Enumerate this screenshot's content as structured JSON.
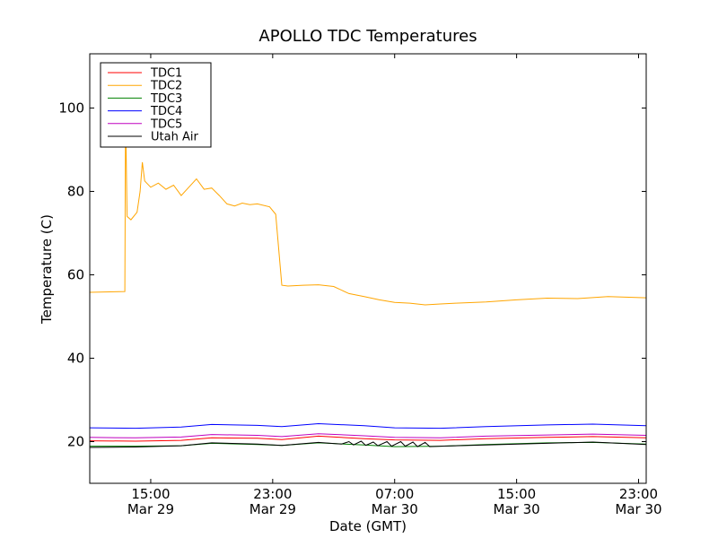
{
  "chart_data": {
    "type": "line",
    "title": "APOLLO TDC Temperatures",
    "xlabel": "Date (GMT)",
    "ylabel": "Temperature (C)",
    "x_unit": "hours since Mar 29 11:00 GMT",
    "xlim": [
      0,
      36.5
    ],
    "ylim": [
      10,
      113
    ],
    "yticks": [
      20,
      40,
      60,
      80,
      100
    ],
    "xticks": [
      {
        "x": 4,
        "line1": "15:00",
        "line2": "Mar 29"
      },
      {
        "x": 12,
        "line1": "23:00",
        "line2": "Mar 29"
      },
      {
        "x": 20,
        "line1": "07:00",
        "line2": "Mar 30"
      },
      {
        "x": 28,
        "line1": "15:00",
        "line2": "Mar 30"
      },
      {
        "x": 36,
        "line1": "23:00",
        "line2": "Mar 30"
      }
    ],
    "grid": false,
    "legend_position": "top-left",
    "series": [
      {
        "name": "TDC1",
        "color": "#ff0000",
        "points": [
          [
            0,
            20.2
          ],
          [
            3,
            20.1
          ],
          [
            6,
            20.3
          ],
          [
            8,
            20.9
          ],
          [
            11,
            20.8
          ],
          [
            12.6,
            20.5
          ],
          [
            15,
            21.3
          ],
          [
            18,
            20.7
          ],
          [
            20,
            20.4
          ],
          [
            23,
            20.3
          ],
          [
            26,
            20.7
          ],
          [
            30,
            21.0
          ],
          [
            33,
            21.2
          ],
          [
            36.5,
            20.9
          ]
        ]
      },
      {
        "name": "TDC2",
        "color": "#ffa500",
        "points": [
          [
            0,
            55.8
          ],
          [
            2.3,
            56.0
          ],
          [
            2.35,
            99
          ],
          [
            2.45,
            74
          ],
          [
            2.7,
            73.2
          ],
          [
            3.1,
            75
          ],
          [
            3.3,
            80
          ],
          [
            3.45,
            87
          ],
          [
            3.6,
            82.5
          ],
          [
            4,
            81
          ],
          [
            4.5,
            82
          ],
          [
            5,
            80.5
          ],
          [
            5.5,
            81.5
          ],
          [
            6,
            79
          ],
          [
            6.5,
            81
          ],
          [
            7,
            83
          ],
          [
            7.5,
            80.5
          ],
          [
            8,
            80.8
          ],
          [
            8.5,
            79
          ],
          [
            9,
            77
          ],
          [
            9.5,
            76.5
          ],
          [
            10,
            77.2
          ],
          [
            10.5,
            76.8
          ],
          [
            11,
            77
          ],
          [
            11.8,
            76.3
          ],
          [
            12.2,
            74.5
          ],
          [
            12.6,
            57.5
          ],
          [
            13,
            57.3
          ],
          [
            14,
            57.5
          ],
          [
            15,
            57.6
          ],
          [
            16,
            57.2
          ],
          [
            17,
            55.5
          ],
          [
            18,
            54.8
          ],
          [
            19,
            54
          ],
          [
            20,
            53.4
          ],
          [
            21,
            53.2
          ],
          [
            22,
            52.8
          ],
          [
            23,
            53
          ],
          [
            24,
            53.2
          ],
          [
            26,
            53.5
          ],
          [
            28,
            54
          ],
          [
            30,
            54.4
          ],
          [
            32,
            54.3
          ],
          [
            34,
            54.8
          ],
          [
            36.5,
            54.5
          ]
        ]
      },
      {
        "name": "TDC3",
        "color": "#008000",
        "points": [
          [
            0,
            18.9
          ],
          [
            3,
            18.9
          ],
          [
            6,
            19.0
          ],
          [
            8,
            19.6
          ],
          [
            11,
            19.3
          ],
          [
            12.6,
            19.1
          ],
          [
            15,
            19.7
          ],
          [
            18,
            19.2
          ],
          [
            20,
            18.8
          ],
          [
            23,
            18.9
          ],
          [
            26,
            19.3
          ],
          [
            30,
            19.7
          ],
          [
            33,
            19.8
          ],
          [
            36.5,
            19.4
          ]
        ]
      },
      {
        "name": "TDC4",
        "color": "#0000ff",
        "points": [
          [
            0,
            23.3
          ],
          [
            3,
            23.2
          ],
          [
            6,
            23.5
          ],
          [
            8,
            24.1
          ],
          [
            11,
            23.9
          ],
          [
            12.6,
            23.6
          ],
          [
            15,
            24.3
          ],
          [
            18,
            23.8
          ],
          [
            20,
            23.3
          ],
          [
            23,
            23.2
          ],
          [
            26,
            23.6
          ],
          [
            30,
            24.0
          ],
          [
            33,
            24.2
          ],
          [
            36.5,
            23.8
          ]
        ]
      },
      {
        "name": "TDC5",
        "color": "#bf00bf",
        "points": [
          [
            0,
            21.0
          ],
          [
            3,
            20.9
          ],
          [
            6,
            21.1
          ],
          [
            8,
            21.7
          ],
          [
            11,
            21.5
          ],
          [
            12.6,
            21.2
          ],
          [
            15,
            21.9
          ],
          [
            18,
            21.4
          ],
          [
            20,
            21.0
          ],
          [
            23,
            20.9
          ],
          [
            26,
            21.3
          ],
          [
            30,
            21.6
          ],
          [
            33,
            21.8
          ],
          [
            36.5,
            21.5
          ]
        ]
      },
      {
        "name": "Utah Air",
        "color": "#000000",
        "points": [
          [
            0,
            18.6
          ],
          [
            3,
            18.7
          ],
          [
            6,
            19.0
          ],
          [
            8,
            19.7
          ],
          [
            11,
            19.4
          ],
          [
            12.6,
            19.1
          ],
          [
            15,
            19.8
          ],
          [
            16.5,
            19.4
          ],
          [
            17,
            20.0
          ],
          [
            17.3,
            19.2
          ],
          [
            17.8,
            20.1
          ],
          [
            18.1,
            19.1
          ],
          [
            18.6,
            19.9
          ],
          [
            18.9,
            19.0
          ],
          [
            19.5,
            20.0
          ],
          [
            19.8,
            18.9
          ],
          [
            20.4,
            20.0
          ],
          [
            20.7,
            18.9
          ],
          [
            21.2,
            19.9
          ],
          [
            21.5,
            18.8
          ],
          [
            22,
            19.8
          ],
          [
            22.3,
            18.8
          ],
          [
            23,
            18.9
          ],
          [
            26,
            19.2
          ],
          [
            30,
            19.6
          ],
          [
            33,
            19.9
          ],
          [
            36.5,
            19.3
          ]
        ]
      }
    ]
  }
}
